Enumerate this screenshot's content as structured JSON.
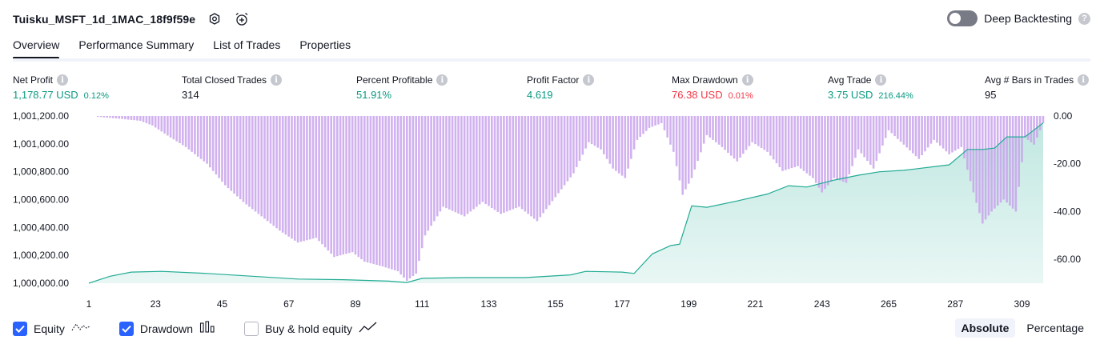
{
  "header": {
    "title": "Tuisku_MSFT_1d_1MAC_18f9f59e",
    "icons": [
      "gear-icon",
      "alarm-add-icon"
    ],
    "deep_backtesting_label": "Deep Backtesting",
    "deep_backtesting_enabled": false
  },
  "tabs": [
    {
      "label": "Overview",
      "active": true
    },
    {
      "label": "Performance Summary",
      "active": false
    },
    {
      "label": "List of Trades",
      "active": false
    },
    {
      "label": "Properties",
      "active": false
    }
  ],
  "metrics": [
    {
      "label": "Net Profit",
      "value": "1,178.77 USD",
      "pct": "0.12%",
      "tone": "pos"
    },
    {
      "label": "Total Closed Trades",
      "value": "314",
      "pct": "",
      "tone": "neutral"
    },
    {
      "label": "Percent Profitable",
      "value": "51.91%",
      "pct": "",
      "tone": "pos"
    },
    {
      "label": "Profit Factor",
      "value": "4.619",
      "pct": "",
      "tone": "pos"
    },
    {
      "label": "Max Drawdown",
      "value": "76.38 USD",
      "pct": "0.01%",
      "tone": "neg"
    },
    {
      "label": "Avg Trade",
      "value": "3.75 USD",
      "pct": "216.44%",
      "tone": "pos"
    },
    {
      "label": "Avg # Bars in Trades",
      "value": "95",
      "pct": "",
      "tone": "neutral"
    }
  ],
  "chart_data": {
    "type": "area",
    "x_ticks": [
      "1",
      "23",
      "45",
      "67",
      "89",
      "111",
      "133",
      "155",
      "177",
      "199",
      "221",
      "243",
      "265",
      "287",
      "309"
    ],
    "x_range": [
      1,
      316
    ],
    "left_axis": {
      "ticks": [
        "1,001,200.00",
        "1,001,000.00",
        "1,000,800.00",
        "1,000,600.00",
        "1,000,400.00",
        "1,000,200.00",
        "1,000,000.00"
      ],
      "range": [
        1000000,
        1001200
      ]
    },
    "right_axis": {
      "ticks": [
        "0.00",
        "-20.00",
        "-40.00",
        "-60.00"
      ],
      "range": [
        -70,
        0
      ]
    },
    "series": [
      {
        "name": "Equity",
        "kind": "area",
        "axis": "left",
        "color": "#22ab94",
        "points": [
          [
            1,
            1000000
          ],
          [
            8,
            1000050
          ],
          [
            15,
            1000080
          ],
          [
            25,
            1000085
          ],
          [
            40,
            1000070
          ],
          [
            55,
            1000050
          ],
          [
            70,
            1000030
          ],
          [
            85,
            1000025
          ],
          [
            100,
            1000015
          ],
          [
            106,
            1000005
          ],
          [
            111,
            1000035
          ],
          [
            125,
            1000040
          ],
          [
            145,
            1000040
          ],
          [
            160,
            1000060
          ],
          [
            165,
            1000085
          ],
          [
            177,
            1000080
          ],
          [
            181,
            1000070
          ],
          [
            187,
            1000210
          ],
          [
            193,
            1000270
          ],
          [
            196,
            1000280
          ],
          [
            200,
            1000555
          ],
          [
            205,
            1000545
          ],
          [
            215,
            1000590
          ],
          [
            225,
            1000640
          ],
          [
            232,
            1000700
          ],
          [
            238,
            1000690
          ],
          [
            247,
            1000740
          ],
          [
            255,
            1000775
          ],
          [
            262,
            1000800
          ],
          [
            270,
            1000810
          ],
          [
            285,
            1000850
          ],
          [
            291,
            1000960
          ],
          [
            296,
            1000960
          ],
          [
            300,
            1000970
          ],
          [
            304,
            1001050
          ],
          [
            310,
            1001050
          ],
          [
            316,
            1001150
          ]
        ]
      },
      {
        "name": "Drawdown",
        "kind": "bars",
        "axis": "right",
        "color": "#c9a3ec",
        "points": [
          [
            1,
            0
          ],
          [
            10,
            -1
          ],
          [
            18,
            -2
          ],
          [
            22,
            -4
          ],
          [
            28,
            -9
          ],
          [
            33,
            -13
          ],
          [
            40,
            -20
          ],
          [
            46,
            -29
          ],
          [
            52,
            -36
          ],
          [
            58,
            -42
          ],
          [
            64,
            -48
          ],
          [
            70,
            -53
          ],
          [
            76,
            -51
          ],
          [
            82,
            -59
          ],
          [
            88,
            -57
          ],
          [
            92,
            -61
          ],
          [
            98,
            -63
          ],
          [
            103,
            -65
          ],
          [
            106,
            -69
          ],
          [
            109,
            -66
          ],
          [
            112,
            -50
          ],
          [
            118,
            -38
          ],
          [
            125,
            -42
          ],
          [
            131,
            -36
          ],
          [
            137,
            -41
          ],
          [
            143,
            -38
          ],
          [
            149,
            -44
          ],
          [
            155,
            -34
          ],
          [
            161,
            -24
          ],
          [
            166,
            -11
          ],
          [
            170,
            -14
          ],
          [
            174,
            -22
          ],
          [
            178,
            -26
          ],
          [
            182,
            -10
          ],
          [
            186,
            -5
          ],
          [
            190,
            -3
          ],
          [
            194,
            -15
          ],
          [
            197,
            -33
          ],
          [
            200,
            -26
          ],
          [
            205,
            -8
          ],
          [
            210,
            -13
          ],
          [
            215,
            -19
          ],
          [
            220,
            -11
          ],
          [
            225,
            -15
          ],
          [
            230,
            -23
          ],
          [
            235,
            -21
          ],
          [
            240,
            -26
          ],
          [
            243,
            -32
          ],
          [
            247,
            -26
          ],
          [
            251,
            -28
          ],
          [
            255,
            -14
          ],
          [
            260,
            -22
          ],
          [
            265,
            -6
          ],
          [
            270,
            -12
          ],
          [
            275,
            -18
          ],
          [
            280,
            -10
          ],
          [
            285,
            -16
          ],
          [
            289,
            -13
          ],
          [
            293,
            -32
          ],
          [
            296,
            -45
          ],
          [
            299,
            -40
          ],
          [
            303,
            -35
          ],
          [
            307,
            -40
          ],
          [
            310,
            -9
          ],
          [
            313,
            -12
          ],
          [
            316,
            -3
          ]
        ]
      }
    ],
    "legend_placement": "bottom-left"
  },
  "legend": [
    {
      "label": "Equity",
      "checked": true,
      "icon": "equity-line-icon"
    },
    {
      "label": "Drawdown",
      "checked": true,
      "icon": "drawdown-bars-icon"
    },
    {
      "label": "Buy & hold equity",
      "checked": false,
      "icon": "buy-hold-line-icon"
    }
  ],
  "modes": [
    {
      "label": "Absolute",
      "active": true
    },
    {
      "label": "Percentage",
      "active": false
    }
  ]
}
